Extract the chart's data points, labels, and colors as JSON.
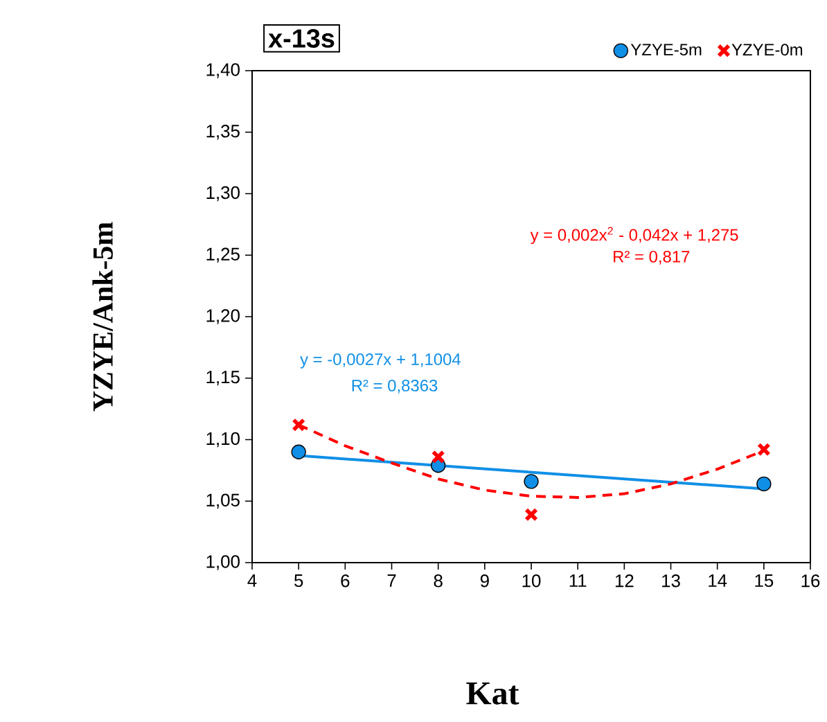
{
  "chart_data": {
    "type": "scatter",
    "title": "x-13s",
    "xlabel": "Kat",
    "ylabel": "YZYE/Ank-5m",
    "x": [
      5,
      8,
      10,
      15
    ],
    "series": [
      {
        "name": "YZYE-5m",
        "color": "#0f8fe6",
        "marker": "circle",
        "values": [
          1.09,
          1.079,
          1.066,
          1.064
        ]
      },
      {
        "name": "YZYE-0m",
        "color": "#ff0000",
        "marker": "cross",
        "values": [
          1.112,
          1.086,
          1.039,
          1.092
        ]
      },
      {
        "type": "line",
        "color": "#0f8fe6",
        "line_style": "solid",
        "marker": "none",
        "x": [
          5,
          15
        ],
        "values": [
          1.087,
          1.06
        ]
      },
      {
        "type": "line",
        "color": "#ff0000",
        "line_style": "dashed",
        "marker": "none",
        "x": [
          5,
          6,
          7,
          8,
          9,
          10,
          11,
          12,
          13,
          14,
          15
        ],
        "values": [
          1.112,
          1.095,
          1.081,
          1.068,
          1.059,
          1.054,
          1.053,
          1.056,
          1.064,
          1.076,
          1.091
        ]
      }
    ],
    "annotations": [
      "y = 0,002x$^{2}$ - 0,042x + 1,275",
      "R² = 0,817",
      "y = -0,0027x + 1,1004",
      "R² = 0,8363"
    ],
    "xlim": [
      4,
      16
    ],
    "ylim": [
      1.0,
      1.4
    ],
    "xticks": [
      4,
      5,
      6,
      7,
      8,
      9,
      10,
      11,
      12,
      13,
      14,
      15,
      16
    ],
    "yticks": [
      {
        "value": 1.0,
        "label": "1,00"
      },
      {
        "value": 1.05,
        "label": "1,05"
      },
      {
        "value": 1.1,
        "label": "1,10"
      },
      {
        "value": 1.15,
        "label": "1,15"
      },
      {
        "value": 1.2,
        "label": "1,20"
      },
      {
        "value": 1.25,
        "label": "1,25"
      },
      {
        "value": 1.3,
        "label": "1,30"
      },
      {
        "value": 1.35,
        "label": "1,35"
      },
      {
        "value": 1.4,
        "label": "1,40"
      }
    ],
    "grid": false,
    "legend": "top right"
  }
}
